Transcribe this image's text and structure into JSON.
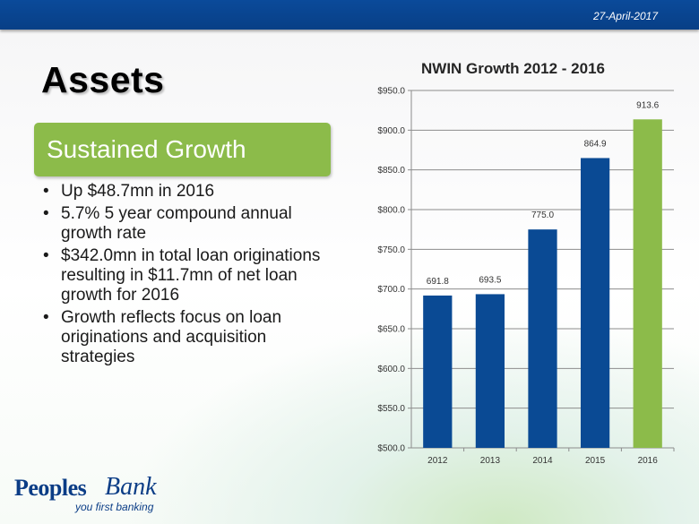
{
  "header": {
    "date": "27-April-2017"
  },
  "slide": {
    "title": "Assets",
    "section_heading": "Sustained Growth",
    "bullets": [
      "Up $48.7mn in 2016",
      "5.7% 5 year compound annual growth rate",
      "$342.0mn in total loan originations resulting in $11.7mn of net loan growth for 2016",
      "Growth reflects focus on loan originations and acquisition strategies"
    ]
  },
  "logo": {
    "name_main": "Peoples",
    "name_script": "Bank",
    "tagline": "you first banking"
  },
  "colors": {
    "brand_blue": "#0b3d86",
    "bar_blue": "#0a4a94",
    "bar_green": "#8cbb4a",
    "heading_green": "#8cbb4a"
  },
  "chart_data": {
    "type": "bar",
    "title": "NWIN Growth 2012 - 2016",
    "categories": [
      "2012",
      "2013",
      "2014",
      "2015",
      "2016"
    ],
    "values": [
      691.8,
      693.5,
      775.0,
      864.9,
      913.6
    ],
    "value_labels": [
      "691.8",
      "693.5",
      "775.0",
      "864.9",
      "913.6"
    ],
    "bar_colors": [
      "#0a4a94",
      "#0a4a94",
      "#0a4a94",
      "#0a4a94",
      "#8cbb4a"
    ],
    "ylim": [
      500,
      950
    ],
    "yticks": [
      500,
      550,
      600,
      650,
      700,
      750,
      800,
      850,
      900,
      950
    ],
    "ytick_labels": [
      "$500.0",
      "$550.0",
      "$600.0",
      "$650.0",
      "$700.0",
      "$750.0",
      "$800.0",
      "$850.0",
      "$900.0",
      "$950.0"
    ],
    "grid": true,
    "xlabel": "",
    "ylabel": ""
  }
}
